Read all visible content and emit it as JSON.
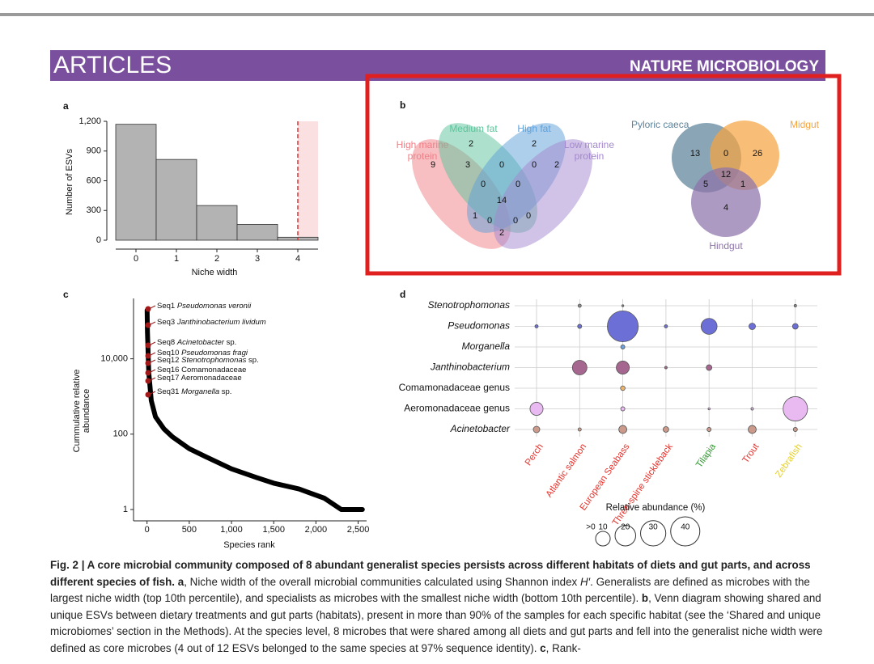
{
  "header": {
    "section": "ARTICLES",
    "journal": "NATURE MICROBIOLOGY"
  },
  "chart_data": [
    {
      "type": "histogram",
      "panel": "a",
      "bins": [
        -0.5,
        0.5,
        1.5,
        2.5,
        3.5,
        4.5
      ],
      "values": [
        1170,
        815,
        350,
        160,
        30
      ],
      "color": "#b3b3b3",
      "xlim": [
        -0.5,
        4.5
      ],
      "ylim": [
        0,
        1200
      ],
      "xticks": [
        0,
        1,
        2,
        3,
        4
      ],
      "yticks": [
        0,
        300,
        600,
        900,
        {
          "value": 1200,
          "label": "1,200"
        }
      ],
      "x_label": "Niche width",
      "y_label": "Number of ESVs",
      "threshold": 4,
      "threshold_color": "#e03030"
    },
    {
      "type": "venn",
      "panel": "b",
      "sets": [
        {
          "name": "High marine protein",
          "color": "#f07f86"
        },
        {
          "name": "Medium fat",
          "color": "#5cc49c"
        },
        {
          "name": "High fat",
          "color": "#5e9fd8"
        },
        {
          "name": "Low marine protein",
          "color": "#a487cf"
        }
      ],
      "values": [
        2,
        2,
        9,
        3,
        0,
        0,
        2,
        0,
        0,
        14,
        1,
        0,
        0,
        0,
        2
      ]
    },
    {
      "type": "venn",
      "sets": [
        {
          "name": "Pyloric caeca",
          "color": "#5d8299"
        },
        {
          "name": "Midgut",
          "color": "#f5a441"
        },
        {
          "name": "Hindgut",
          "color": "#8e73aa"
        }
      ],
      "values": [
        13,
        0,
        26,
        12,
        5,
        1,
        4
      ]
    },
    {
      "type": "line",
      "panel": "c",
      "x": [
        1,
        5,
        20,
        50,
        100,
        200,
        300,
        500,
        700,
        1000,
        1300,
        1500,
        1800,
        2100,
        2300,
        2550
      ],
      "values": [
        195000,
        51000,
        4400,
        780,
        290,
        138,
        85,
        41,
        25,
        12,
        7,
        5,
        3.5,
        2,
        1,
        1
      ],
      "color": "#000000",
      "log_y": true,
      "xlim": [
        -160,
        2600
      ],
      "ylim": [
        0.5,
        400000
      ],
      "xticks": [
        0,
        500,
        {
          "value": 1000,
          "label": "1,000"
        },
        {
          "value": 1500,
          "label": "1,500"
        },
        {
          "value": 2000,
          "label": "2,000"
        },
        {
          "value": 2500,
          "label": "2,500"
        }
      ],
      "yticks": [
        1,
        100,
        {
          "value": 10000,
          "label": "10,000"
        }
      ],
      "x_label": "Species rank",
      "y_label": [
        "Cummulative relative",
        "abundance"
      ],
      "highlight_color": "#a01818",
      "annotations": [
        {
          "seq": "Seq1",
          "taxon": "Pseudomonas veronii",
          "taxon_italic": true
        },
        {
          "seq": "Seq3",
          "taxon": "Janthinobacterium lividum",
          "taxon_italic": true
        },
        {
          "seq": "Seq8",
          "taxon": "Acinetobacter",
          "taxon_italic": true,
          "suffix": "sp."
        },
        {
          "seq": "Seq10",
          "taxon": "Pseudomonas fragi",
          "taxon_italic": true
        },
        {
          "seq": "Seq12",
          "taxon": "Stenotrophomonas",
          "taxon_italic": true,
          "suffix": "sp."
        },
        {
          "seq": "Seq16",
          "taxon": "Comamonadaceae",
          "taxon_italic": false
        },
        {
          "seq": "Seq17",
          "taxon": "Aeromonadaceae",
          "taxon_italic": false
        },
        {
          "seq": "Seq31",
          "taxon": "Morganella",
          "taxon_italic": true,
          "suffix": "sp."
        }
      ]
    },
    {
      "type": "bubble",
      "panel": "d",
      "categories": [
        "Perch",
        "Atlantic salmon",
        "European Seabass",
        "Three-spine stickleback",
        "Tilapia",
        "Trout",
        "Zebrafish"
      ],
      "category_colors": [
        "#e8322b",
        "#e8322b",
        "#e8322b",
        "#e8322b",
        "#2e9a2e",
        "#e8322b",
        "#e6cf2a"
      ],
      "series": [
        {
          "name": "Stenotrophomonas",
          "italic": true,
          "color": "#8a8a8a",
          "values": [
            0,
            0.5,
            0.2,
            0,
            0,
            0,
            0.3
          ]
        },
        {
          "name": "Pseudomonas",
          "italic": true,
          "color": "#6c70d6",
          "values": [
            0.5,
            0.8,
            45,
            0.5,
            12,
            2,
            1.5
          ]
        },
        {
          "name": "Morganella",
          "italic": true,
          "color": "#6fa2d8",
          "values": [
            0,
            0,
            0.8,
            0,
            0,
            0,
            0
          ]
        },
        {
          "name": "Janthinobacterium",
          "italic": true,
          "color": "#a5678f",
          "values": [
            0,
            10,
            8,
            0.3,
            1.5,
            0,
            0
          ]
        },
        {
          "name": "Comamonadaceae genus",
          "italic": false,
          "color": "#eab36e",
          "values": [
            0,
            0,
            1,
            0,
            0,
            0,
            0
          ]
        },
        {
          "name": "Aeromonadaceae genus",
          "italic": false,
          "color": "#e9baf2",
          "values": [
            8,
            0,
            0.8,
            0,
            0.2,
            0.3,
            28
          ]
        },
        {
          "name": "Acinetobacter",
          "italic": true,
          "color": "#cc9a8a",
          "values": [
            2,
            0.5,
            3,
            1.5,
            0.8,
            3,
            0.8
          ]
        }
      ],
      "size_legend": {
        "title": "Relative abundance (%)",
        "sizes": [
          {
            "value": 0,
            "label": ">0"
          },
          10,
          20,
          30,
          40
        ]
      }
    }
  ],
  "caption": [
    {
      "text": "Fig. 2 | A core microbial community composed of 8 abundant generalist species persists across different habitats of diets and gut parts, and across different species of fish.",
      "style": "bold"
    },
    {
      "text": " ",
      "style": "plain"
    },
    {
      "text": "a",
      "style": "bold"
    },
    {
      "text": ", Niche width of the overall microbial communities calculated using Shannon index ",
      "style": "plain"
    },
    {
      "text": "H′",
      "style": "italic"
    },
    {
      "text": ". Generalists are defined as microbes with the largest niche width (top 10th percentile), and specialists as microbes with the smallest niche width (bottom 10th percentile). ",
      "style": "plain"
    },
    {
      "text": "b",
      "style": "bold"
    },
    {
      "text": ", Venn diagram showing shared and unique ESVs between dietary treatments and gut parts (habitats), present in more than 90% of the samples for each specific habitat (see the ‘Shared and unique microbiomes’ section in the Methods). At the species level, 8 microbes that were shared among all diets and gut parts and fell into the generalist niche width were defined as core microbes (4 out of 12 ESVs belonged to the same species at 97% sequence identity). ",
      "style": "plain"
    },
    {
      "text": "c",
      "style": "bold"
    },
    {
      "text": ", Rank-",
      "style": "plain"
    }
  ]
}
